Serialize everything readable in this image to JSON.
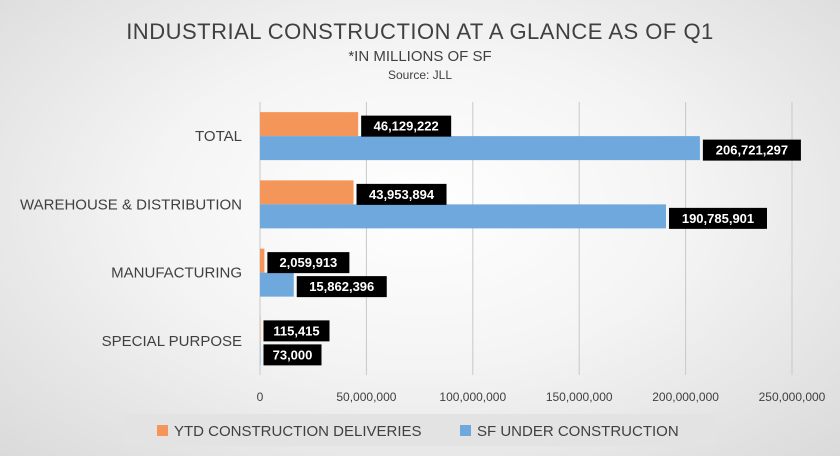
{
  "chart_data": {
    "type": "bar",
    "orientation": "horizontal",
    "title": "INDUSTRIAL CONSTRUCTION AT A GLANCE AS OF Q1",
    "subtitle": "*IN MILLIONS OF SF",
    "source": "Source: JLL",
    "categories": [
      "TOTAL",
      "WAREHOUSE & DISTRIBUTION",
      "MANUFACTURING",
      "SPECIAL PURPOSE"
    ],
    "series": [
      {
        "name": "YTD CONSTRUCTION DELIVERIES",
        "color": "#f4955a",
        "values": [
          46129222,
          43953894,
          2059913,
          115415
        ],
        "labels": [
          "46,129,222",
          "43,953,894",
          "2,059,913",
          "115,415"
        ]
      },
      {
        "name": "SF UNDER CONSTRUCTION",
        "color": "#6fa8dc",
        "values": [
          206721297,
          190785901,
          15862396,
          73000
        ],
        "labels": [
          "206,721,297",
          "190,785,901",
          "15,862,396",
          "73,000"
        ]
      }
    ],
    "xlim": [
      0,
      250000000
    ],
    "xticks": [
      0,
      50000000,
      100000000,
      150000000,
      200000000,
      250000000
    ],
    "xtick_labels": [
      "0",
      "50,000,000",
      "100,000,000",
      "150,000,000",
      "200,000,000",
      "250,000,000"
    ],
    "grid": true,
    "legend_position": "bottom"
  }
}
